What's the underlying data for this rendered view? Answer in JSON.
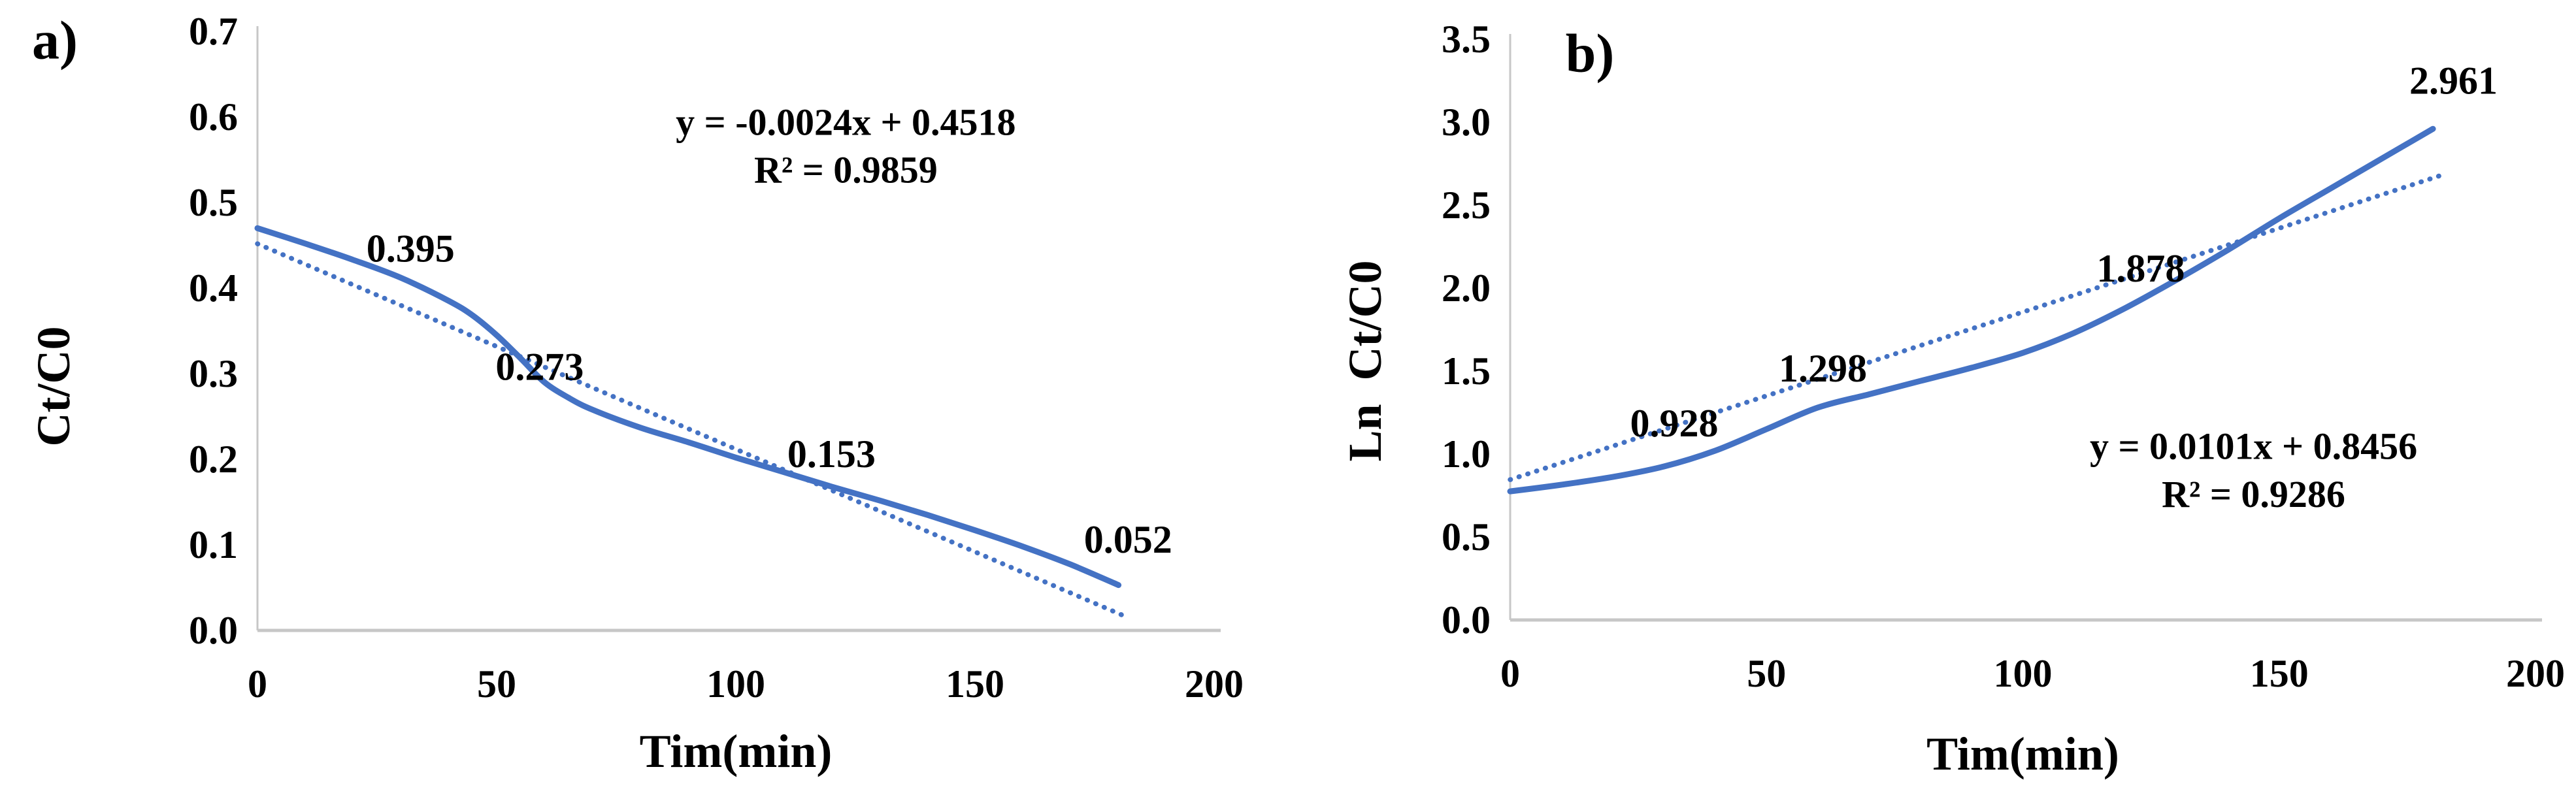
{
  "figure_title": "",
  "colors": {
    "line_blue": "#4472C4",
    "axis_gray": "#c7c7c7",
    "text_black": "#000000",
    "background": "#ffffff"
  },
  "chart_data": [
    {
      "id": "a",
      "type": "line",
      "panel_label": "a)",
      "xlabel": "Tim(min)",
      "ylabel": "Ct/C0",
      "xlim": [
        0,
        200
      ],
      "ylim": [
        0,
        0.7
      ],
      "xticks": [
        0,
        50,
        100,
        150,
        200
      ],
      "yticks": [
        "0.0",
        "0.1",
        "0.2",
        "0.3",
        "0.4",
        "0.5",
        "0.6",
        "0.7"
      ],
      "grid": false,
      "legend": "none",
      "series": [
        {
          "name": "Ct/C0 curve",
          "style": "solid",
          "x": [
            0,
            10,
            20,
            30,
            40,
            45,
            50,
            55,
            60,
            65,
            70,
            80,
            90,
            100,
            110,
            120,
            130,
            140,
            150,
            160,
            170,
            180
          ],
          "y": [
            0.47,
            0.452,
            0.433,
            0.412,
            0.385,
            0.368,
            0.345,
            0.318,
            0.29,
            0.272,
            0.258,
            0.237,
            0.22,
            0.202,
            0.185,
            0.168,
            0.152,
            0.135,
            0.117,
            0.098,
            0.077,
            0.053
          ]
        },
        {
          "name": "linear trendline",
          "style": "dotted",
          "slope": -0.0024,
          "intercept": 0.4518,
          "x_range": [
            0,
            182
          ]
        }
      ],
      "point_labels": [
        {
          "text": "0.395",
          "x": 32,
          "y": 0.446
        },
        {
          "text": "0.273",
          "x": 59,
          "y": 0.308
        },
        {
          "text": "0.153",
          "x": 120,
          "y": 0.206
        },
        {
          "text": "0.052",
          "x": 182,
          "y": 0.106
        }
      ],
      "equation": {
        "line1": "y = -0.0024x + 0.4518",
        "line2": "R² = 0.9859",
        "x": 123,
        "y1": 0.594,
        "y2": 0.538
      }
    },
    {
      "id": "b",
      "type": "line",
      "panel_label": "b)",
      "xlabel": "Tim(min)",
      "ylabel": "Ln  Ct/C0",
      "xlim": [
        0,
        200
      ],
      "ylim": [
        0,
        3.5
      ],
      "xticks": [
        0,
        50,
        100,
        150,
        200
      ],
      "yticks": [
        "0.0",
        "0.5",
        "1.0",
        "1.5",
        "2.0",
        "2.5",
        "3.0",
        "3.5"
      ],
      "grid": false,
      "legend": "none",
      "series": [
        {
          "name": "Ln Ct/C0 curve",
          "style": "solid",
          "x": [
            0,
            10,
            20,
            30,
            40,
            50,
            60,
            70,
            80,
            90,
            100,
            110,
            120,
            130,
            140,
            150,
            160,
            170,
            180
          ],
          "y": [
            0.775,
            0.815,
            0.862,
            0.925,
            1.02,
            1.15,
            1.28,
            1.36,
            1.44,
            1.52,
            1.61,
            1.73,
            1.88,
            2.05,
            2.23,
            2.42,
            2.6,
            2.78,
            2.96
          ]
        },
        {
          "name": "linear trendline",
          "style": "dotted",
          "slope": 0.0101,
          "intercept": 0.8456,
          "x_range": [
            0,
            182
          ]
        }
      ],
      "point_labels": [
        {
          "text": "0.928",
          "x": 32,
          "y": 1.185
        },
        {
          "text": "1.298",
          "x": 61,
          "y": 1.516
        },
        {
          "text": "1.878",
          "x": 123,
          "y": 2.118
        },
        {
          "text": "2.961",
          "x": 184,
          "y": 3.25
        }
      ],
      "equation": {
        "line1": "y = 0.0101x + 0.8456",
        "line2": "R² = 0.9286",
        "x": 145,
        "y1": 1.047,
        "y2": 0.757
      }
    }
  ]
}
